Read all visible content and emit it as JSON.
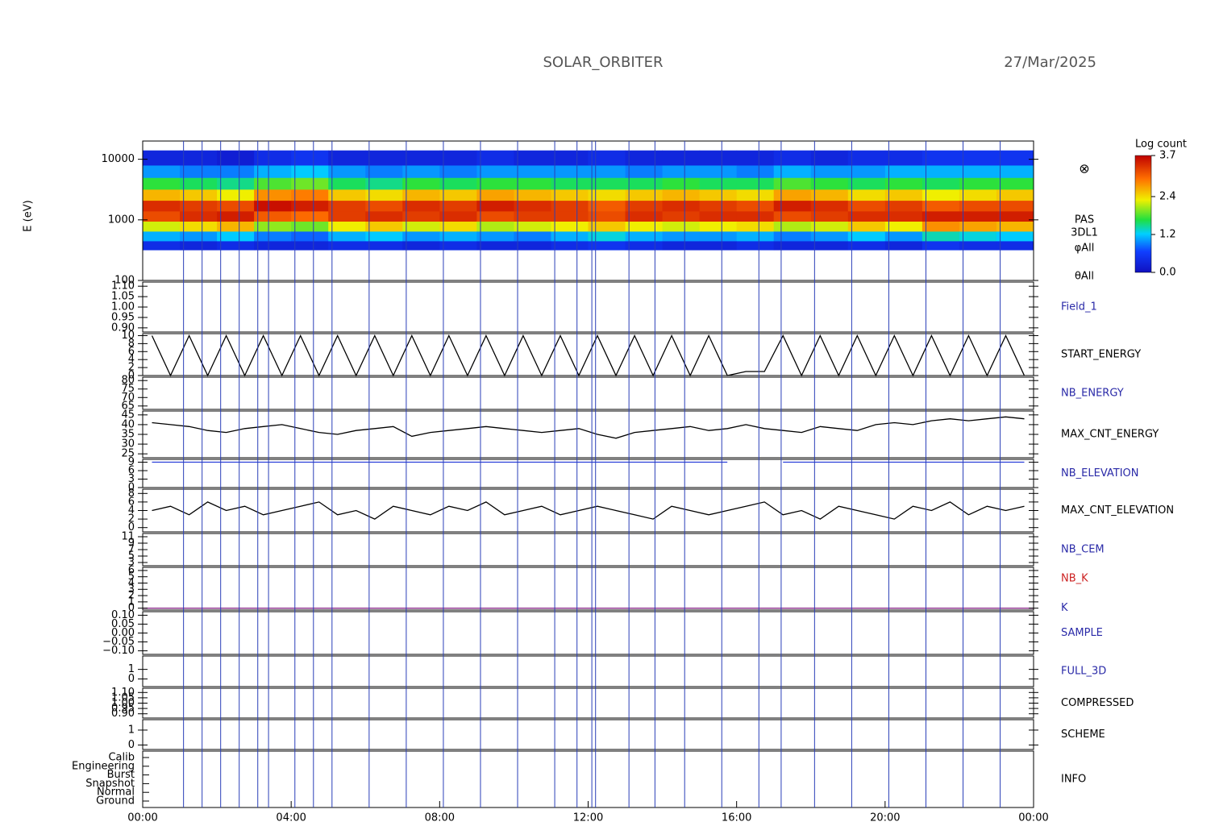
{
  "header": {
    "title": "SOLAR_ORBITER",
    "date": "27/Mar/2025"
  },
  "x_axis": {
    "xlim": [
      0,
      24
    ],
    "xticks": [
      {
        "value": 0,
        "label": "00:00"
      },
      {
        "value": 4,
        "label": "04:00"
      },
      {
        "value": 8,
        "label": "08:00"
      },
      {
        "value": 12,
        "label": "12:00"
      },
      {
        "value": 16,
        "label": "16:00"
      },
      {
        "value": 20,
        "label": "20:00"
      },
      {
        "value": 24,
        "label": "00:00"
      }
    ]
  },
  "markers": [
    1.1,
    1.6,
    2.1,
    2.6,
    3.1,
    3.39,
    4.1,
    4.6,
    5.1,
    6.1,
    7.1,
    8.1,
    9.1,
    10.1,
    11.1,
    11.7,
    12.1,
    12.2,
    13.1,
    13.8,
    14.6,
    15.6,
    16.6,
    17.2,
    18.1,
    19.1,
    20.1,
    21.1,
    22.1,
    23.1
  ],
  "times": [
    0.25,
    0.75,
    1.25,
    1.75,
    2.25,
    2.75,
    3.25,
    3.75,
    4.25,
    4.75,
    5.25,
    5.75,
    6.25,
    6.75,
    7.25,
    7.75,
    8.25,
    8.75,
    9.25,
    9.75,
    10.25,
    10.75,
    11.25,
    11.75,
    12.25,
    12.75,
    13.25,
    13.75,
    14.25,
    14.75,
    15.25,
    15.75,
    16.25,
    16.75,
    17.25,
    17.75,
    18.25,
    18.75,
    19.25,
    19.75,
    20.25,
    20.75,
    21.25,
    21.75,
    22.25,
    22.75,
    23.25,
    23.75
  ],
  "colorbar": {
    "title": "Log count",
    "lim": [
      0,
      3.7
    ],
    "ticks": [
      {
        "value": 0,
        "label": "0.0"
      },
      {
        "value": 1.2,
        "label": "1.2"
      },
      {
        "value": 2.4,
        "label": "2.4"
      },
      {
        "value": 3.7,
        "label": "3.7"
      }
    ]
  },
  "chart_data": [
    {
      "type": "spectrogram",
      "ylabel": "E (eV)",
      "log": true,
      "ylim": [
        100,
        20000
      ],
      "yticks": [
        100,
        1000,
        10000
      ],
      "symbol": "⊗",
      "side_labels": [
        "PAS",
        "3DL1",
        "φAll",
        "θAll"
      ],
      "time_bins": [
        0,
        1,
        2,
        3,
        4,
        5,
        6,
        7,
        8,
        9,
        10,
        11,
        12,
        13,
        14,
        15,
        16,
        17,
        18,
        19,
        20,
        21,
        22,
        23,
        24
      ],
      "energy_bins": [
        320,
        450,
        650,
        950,
        1400,
        2100,
        3200,
        5000,
        8000,
        14000
      ],
      "counts": [
        [
          0.4,
          1.1,
          2.2,
          3.2,
          3.4,
          2.6,
          1.7,
          1.0,
          0.3
        ],
        [
          0.3,
          1.0,
          2.4,
          3.4,
          3.3,
          2.5,
          1.6,
          0.9,
          0.3
        ],
        [
          0.4,
          1.2,
          2.6,
          3.5,
          3.2,
          2.3,
          1.5,
          0.9,
          0.2
        ],
        [
          0.3,
          0.9,
          2.0,
          3.1,
          3.6,
          2.8,
          1.8,
          1.1,
          0.4
        ],
        [
          0.3,
          0.8,
          1.9,
          3.0,
          3.5,
          2.9,
          1.9,
          1.2,
          0.5
        ],
        [
          0.4,
          1.1,
          2.3,
          3.3,
          3.3,
          2.5,
          1.6,
          1.0,
          0.3
        ],
        [
          0.4,
          1.2,
          2.5,
          3.4,
          3.2,
          2.4,
          1.5,
          0.9,
          0.3
        ],
        [
          0.3,
          1.0,
          2.2,
          3.3,
          3.4,
          2.6,
          1.7,
          1.0,
          0.3
        ],
        [
          0.4,
          1.1,
          2.4,
          3.4,
          3.3,
          2.5,
          1.6,
          0.9,
          0.3
        ],
        [
          0.3,
          1.0,
          2.1,
          3.2,
          3.5,
          2.7,
          1.7,
          1.0,
          0.4
        ],
        [
          0.3,
          0.9,
          2.2,
          3.3,
          3.4,
          2.6,
          1.7,
          1.0,
          0.3
        ],
        [
          0.4,
          1.1,
          2.3,
          3.3,
          3.3,
          2.5,
          1.6,
          1.0,
          0.3
        ],
        [
          0.5,
          1.3,
          2.5,
          3.2,
          3.1,
          2.4,
          1.6,
          1.0,
          0.4
        ],
        [
          0.4,
          1.1,
          2.3,
          3.4,
          3.3,
          2.5,
          1.6,
          0.9,
          0.3
        ],
        [
          0.3,
          1.0,
          2.2,
          3.3,
          3.4,
          2.6,
          1.7,
          1.0,
          0.3
        ],
        [
          0.3,
          1.0,
          2.3,
          3.4,
          3.3,
          2.5,
          1.6,
          1.0,
          0.3
        ],
        [
          0.4,
          1.1,
          2.4,
          3.4,
          3.2,
          2.4,
          1.6,
          0.9,
          0.3
        ],
        [
          0.3,
          0.9,
          2.1,
          3.2,
          3.5,
          2.7,
          1.8,
          1.1,
          0.4
        ],
        [
          0.3,
          1.0,
          2.2,
          3.3,
          3.4,
          2.6,
          1.7,
          1.0,
          0.3
        ],
        [
          0.4,
          1.2,
          2.5,
          3.4,
          3.2,
          2.4,
          1.6,
          1.0,
          0.4
        ],
        [
          0.3,
          1.0,
          2.3,
          3.4,
          3.3,
          2.5,
          1.7,
          1.1,
          0.4
        ],
        [
          0.5,
          1.4,
          2.8,
          3.5,
          3.1,
          2.3,
          1.6,
          1.1,
          0.5
        ],
        [
          0.4,
          1.3,
          2.7,
          3.5,
          3.2,
          2.4,
          1.7,
          1.1,
          0.5
        ],
        [
          0.4,
          1.2,
          2.6,
          3.5,
          3.2,
          2.5,
          1.7,
          1.1,
          0.5
        ]
      ]
    },
    {
      "type": "empty",
      "label": "Field_1",
      "label_color": "#2a2aa8",
      "ylim": [
        0.88,
        1.12
      ],
      "yticks": [
        {
          "value": 0.9,
          "label": "0.90"
        },
        {
          "value": 0.95,
          "label": "0.95"
        },
        {
          "value": 1,
          "label": "1.00"
        },
        {
          "value": 1.05,
          "label": "1.05"
        },
        {
          "value": 1.1,
          "label": "1.10"
        }
      ]
    },
    {
      "type": "line",
      "label": "START_ENERGY",
      "label_color": "#000000",
      "ylim": [
        0,
        10.5
      ],
      "yticks": [
        0,
        2,
        4,
        6,
        8,
        10
      ],
      "series": [
        {
          "color": "#000000",
          "values": [
            10,
            0,
            10,
            0,
            10,
            0,
            10,
            0,
            10,
            0,
            10,
            0,
            10,
            0,
            10,
            0,
            10,
            0,
            10,
            0,
            10,
            0,
            10,
            0,
            10,
            0,
            10,
            0,
            10,
            0,
            10,
            0,
            1,
            1,
            10,
            0,
            10,
            0,
            10,
            0,
            10,
            0,
            10,
            0,
            10,
            0,
            10,
            0
          ]
        }
      ]
    },
    {
      "type": "empty",
      "label": "NB_ENERGY",
      "label_color": "#2a2aa8",
      "ylim": [
        63,
        82
      ],
      "yticks": [
        65,
        70,
        75,
        80
      ]
    },
    {
      "type": "line",
      "label": "MAX_CNT_ENERGY",
      "label_color": "#000000",
      "ylim": [
        23,
        47
      ],
      "yticks": [
        25,
        30,
        35,
        40,
        45
      ],
      "series": [
        {
          "color": "#000000",
          "values": [
            41,
            40,
            39,
            37,
            36,
            38,
            39,
            40,
            38,
            36,
            35,
            37,
            38,
            39,
            34,
            36,
            37,
            38,
            39,
            38,
            37,
            36,
            37,
            38,
            35,
            33,
            36,
            37,
            38,
            39,
            37,
            38,
            40,
            38,
            37,
            36,
            39,
            38,
            37,
            40,
            41,
            40,
            42,
            43,
            42,
            43,
            44,
            43
          ]
        }
      ]
    },
    {
      "type": "line",
      "label": "NB_ELEVATION",
      "label_color": "#2a2aa8",
      "ylim": [
        0,
        10
      ],
      "yticks": [
        0,
        3,
        6,
        9
      ],
      "series": [
        {
          "color": "#2a3fd8",
          "values": [
            9,
            9,
            9,
            9,
            9,
            9,
            9,
            9,
            9,
            9,
            9,
            9,
            9,
            9,
            9,
            9,
            9,
            9,
            9,
            9,
            9,
            9,
            9,
            9,
            9,
            9,
            9,
            9,
            9,
            9,
            9,
            9,
            null,
            null,
            9,
            9,
            9,
            9,
            9,
            9,
            9,
            9,
            9,
            9,
            9,
            9,
            9,
            9
          ]
        }
      ]
    },
    {
      "type": "line",
      "label": "MAX_CNT_ELEVATION",
      "label_color": "#000000",
      "ylim": [
        -1,
        9
      ],
      "yticks": [
        0,
        2,
        4,
        6,
        8
      ],
      "series": [
        {
          "color": "#000000",
          "values": [
            4,
            5,
            3,
            6,
            4,
            5,
            3,
            4,
            5,
            6,
            3,
            4,
            2,
            5,
            4,
            3,
            5,
            4,
            6,
            3,
            4,
            5,
            3,
            4,
            5,
            4,
            3,
            2,
            5,
            4,
            3,
            4,
            5,
            6,
            3,
            4,
            2,
            5,
            4,
            3,
            2,
            5,
            4,
            6,
            3,
            5,
            4,
            5
          ]
        }
      ]
    },
    {
      "type": "empty",
      "label": "NB_CEM",
      "label_color": "#2a2aa8",
      "ylim": [
        2,
        12
      ],
      "yticks": [
        3,
        5,
        7,
        9,
        11
      ]
    },
    {
      "type": "line",
      "label": "NB_K",
      "label_color": "#cc2222",
      "ylim": [
        -0.3,
        6.5
      ],
      "yticks": [
        0,
        1,
        2,
        3,
        4,
        5,
        6
      ],
      "series": [
        {
          "name": "K",
          "color": "#8a2a8a",
          "x": [
            0,
            24
          ],
          "values": [
            0,
            0
          ]
        }
      ]
    },
    {
      "type": "empty",
      "label": "SAMPLE",
      "label_color": "#2a2aa8",
      "ylim": [
        -0.12,
        0.12
      ],
      "yticks": [
        {
          "value": -0.1,
          "label": "−0.10"
        },
        {
          "value": -0.05,
          "label": "−0.05"
        },
        {
          "value": 0,
          "label": "0.00"
        },
        {
          "value": 0.05,
          "label": "0.05"
        },
        {
          "value": 0.1,
          "label": "0.10"
        }
      ]
    },
    {
      "type": "empty",
      "label": "FULL_3D",
      "label_color": "#2a2aa8",
      "ylim": [
        -0.8,
        2.4
      ],
      "yticks": [
        0,
        1
      ]
    },
    {
      "type": "empty",
      "label": "COMPRESSED",
      "label_color": "#000000",
      "ylim": [
        0.86,
        1.14
      ],
      "yticks": [
        {
          "value": 0.9,
          "label": "0.90"
        },
        {
          "value": 0.95,
          "label": "0.95"
        },
        {
          "value": 1,
          "label": "1.00"
        },
        {
          "value": 1.05,
          "label": "1.05"
        },
        {
          "value": 1.1,
          "label": "1.10"
        }
      ]
    },
    {
      "type": "empty",
      "label": "SCHEME",
      "label_color": "#000000",
      "ylim": [
        -0.3,
        1.7
      ],
      "yticks": [
        0,
        1
      ]
    },
    {
      "type": "category",
      "label": "INFO",
      "label_color": "#000000",
      "categories": [
        "Ground",
        "Normal",
        "Snapshot",
        "Burst",
        "Engineering",
        "Calib"
      ]
    }
  ]
}
